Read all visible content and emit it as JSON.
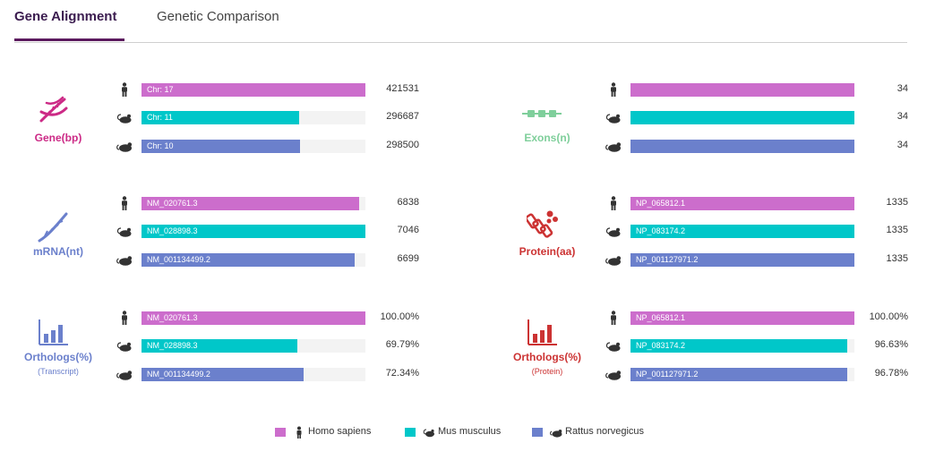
{
  "tabs": [
    {
      "label": "Gene Alignment",
      "active": true
    },
    {
      "label": "Genetic Comparison",
      "active": false
    }
  ],
  "colors": {
    "human": "#cc6dcc",
    "mouse": "#00c7c9",
    "rat": "#6b80cc",
    "gene": "#cc2a86",
    "exons": "#7fcf9b",
    "mrna": "#6b80cc",
    "protein": "#cc3333",
    "orthologs_transcript": "#6b80cc",
    "orthologs_protein": "#cc3333"
  },
  "panels": {
    "gene": {
      "label": "Gene(bp)",
      "icon": "dna-icon",
      "rows": [
        {
          "species": "human",
          "bar_label": "Chr: 17",
          "value": "421531",
          "fraction": 1.0
        },
        {
          "species": "mouse",
          "bar_label": "Chr: 11",
          "value": "296687",
          "fraction": 0.704
        },
        {
          "species": "rat",
          "bar_label": "Chr: 10",
          "value": "298500",
          "fraction": 0.708
        }
      ]
    },
    "exons": {
      "label": "Exons(n)",
      "icon": "exons-icon",
      "rows": [
        {
          "species": "human",
          "bar_label": "",
          "value": "34",
          "fraction": 1.0
        },
        {
          "species": "mouse",
          "bar_label": "",
          "value": "34",
          "fraction": 1.0
        },
        {
          "species": "rat",
          "bar_label": "",
          "value": "34",
          "fraction": 1.0
        }
      ]
    },
    "mrna": {
      "label": "mRNA(nt)",
      "icon": "mrna-icon",
      "rows": [
        {
          "species": "human",
          "bar_label": "NM_020761.3",
          "value": "6838",
          "fraction": 0.97
        },
        {
          "species": "mouse",
          "bar_label": "NM_028898.3",
          "value": "7046",
          "fraction": 1.0
        },
        {
          "species": "rat",
          "bar_label": "NM_001134499.2",
          "value": "6699",
          "fraction": 0.951
        }
      ]
    },
    "protein": {
      "label": "Protein(aa)",
      "icon": "protein-icon",
      "rows": [
        {
          "species": "human",
          "bar_label": "NP_065812.1",
          "value": "1335",
          "fraction": 1.0
        },
        {
          "species": "mouse",
          "bar_label": "NP_083174.2",
          "value": "1335",
          "fraction": 1.0
        },
        {
          "species": "rat",
          "bar_label": "NP_001127971.2",
          "value": "1335",
          "fraction": 1.0
        }
      ]
    },
    "orthologs_transcript": {
      "label": "Orthologs(%)",
      "sublabel": "(Transcript)",
      "icon": "bar-chart-icon",
      "rows": [
        {
          "species": "human",
          "bar_label": "NM_020761.3",
          "value": "100.00%",
          "fraction": 1.0
        },
        {
          "species": "mouse",
          "bar_label": "NM_028898.3",
          "value": "69.79%",
          "fraction": 0.6979
        },
        {
          "species": "rat",
          "bar_label": "NM_001134499.2",
          "value": "72.34%",
          "fraction": 0.7234
        }
      ]
    },
    "orthologs_protein": {
      "label": "Orthologs(%)",
      "sublabel": "(Protein)",
      "icon": "bar-chart-icon",
      "rows": [
        {
          "species": "human",
          "bar_label": "NP_065812.1",
          "value": "100.00%",
          "fraction": 1.0
        },
        {
          "species": "mouse",
          "bar_label": "NP_083174.2",
          "value": "96.63%",
          "fraction": 0.9663
        },
        {
          "species": "rat",
          "bar_label": "NP_001127971.2",
          "value": "96.78%",
          "fraction": 0.9678
        }
      ]
    }
  },
  "legend": [
    {
      "species": "human",
      "label": "Homo sapiens",
      "icon": "human-icon"
    },
    {
      "species": "mouse",
      "label": "Mus musculus",
      "icon": "mouse-icon"
    },
    {
      "species": "rat",
      "label": "Rattus norvegicus",
      "icon": "rat-icon"
    }
  ]
}
